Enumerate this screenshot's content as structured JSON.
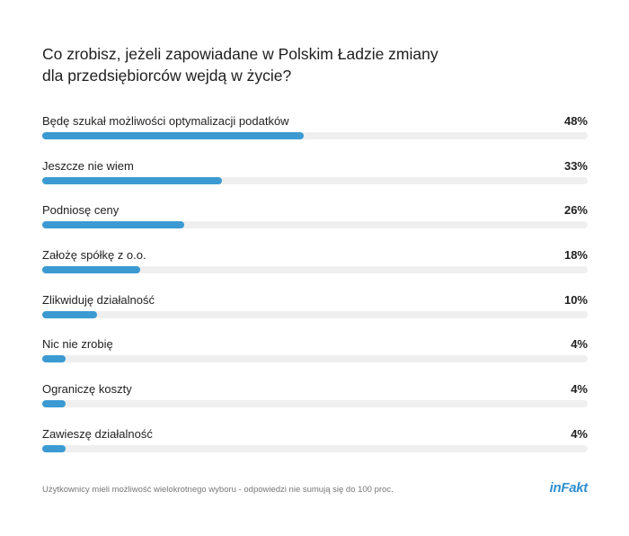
{
  "chart_data": {
    "type": "bar",
    "title_lines": [
      "Co zrobisz, jeżeli zapowiadane w Polskim Ładzie zmiany",
      "dla przedsiębiorców wejdą w życie?"
    ],
    "categories": [
      "Będę szukał możliwości optymalizacji podatków",
      "Jeszcze nie wiem",
      "Podniosę ceny",
      "Założę spółkę z o.o.",
      "Zlikwiduję działalność",
      "Nic nie zrobię",
      "Ograniczę koszty",
      "Zawieszę działalność"
    ],
    "values": [
      48,
      33,
      26,
      18,
      10,
      4,
      4,
      4
    ],
    "value_labels": [
      "48%",
      "33%",
      "26%",
      "18%",
      "10%",
      "4%",
      "4%",
      "4%"
    ],
    "xlim": [
      0,
      100
    ],
    "orientation": "horizontal",
    "bar_color": "#3b9ad2",
    "track_color": "#efefef",
    "footnote": "Użytkownicy mieli możliwość wielokrotnego wyboru - odpowiedzi nie sumują się do 100 proc."
  },
  "brand": {
    "logo_text": "inFakt",
    "color": "#2f8fd0"
  }
}
